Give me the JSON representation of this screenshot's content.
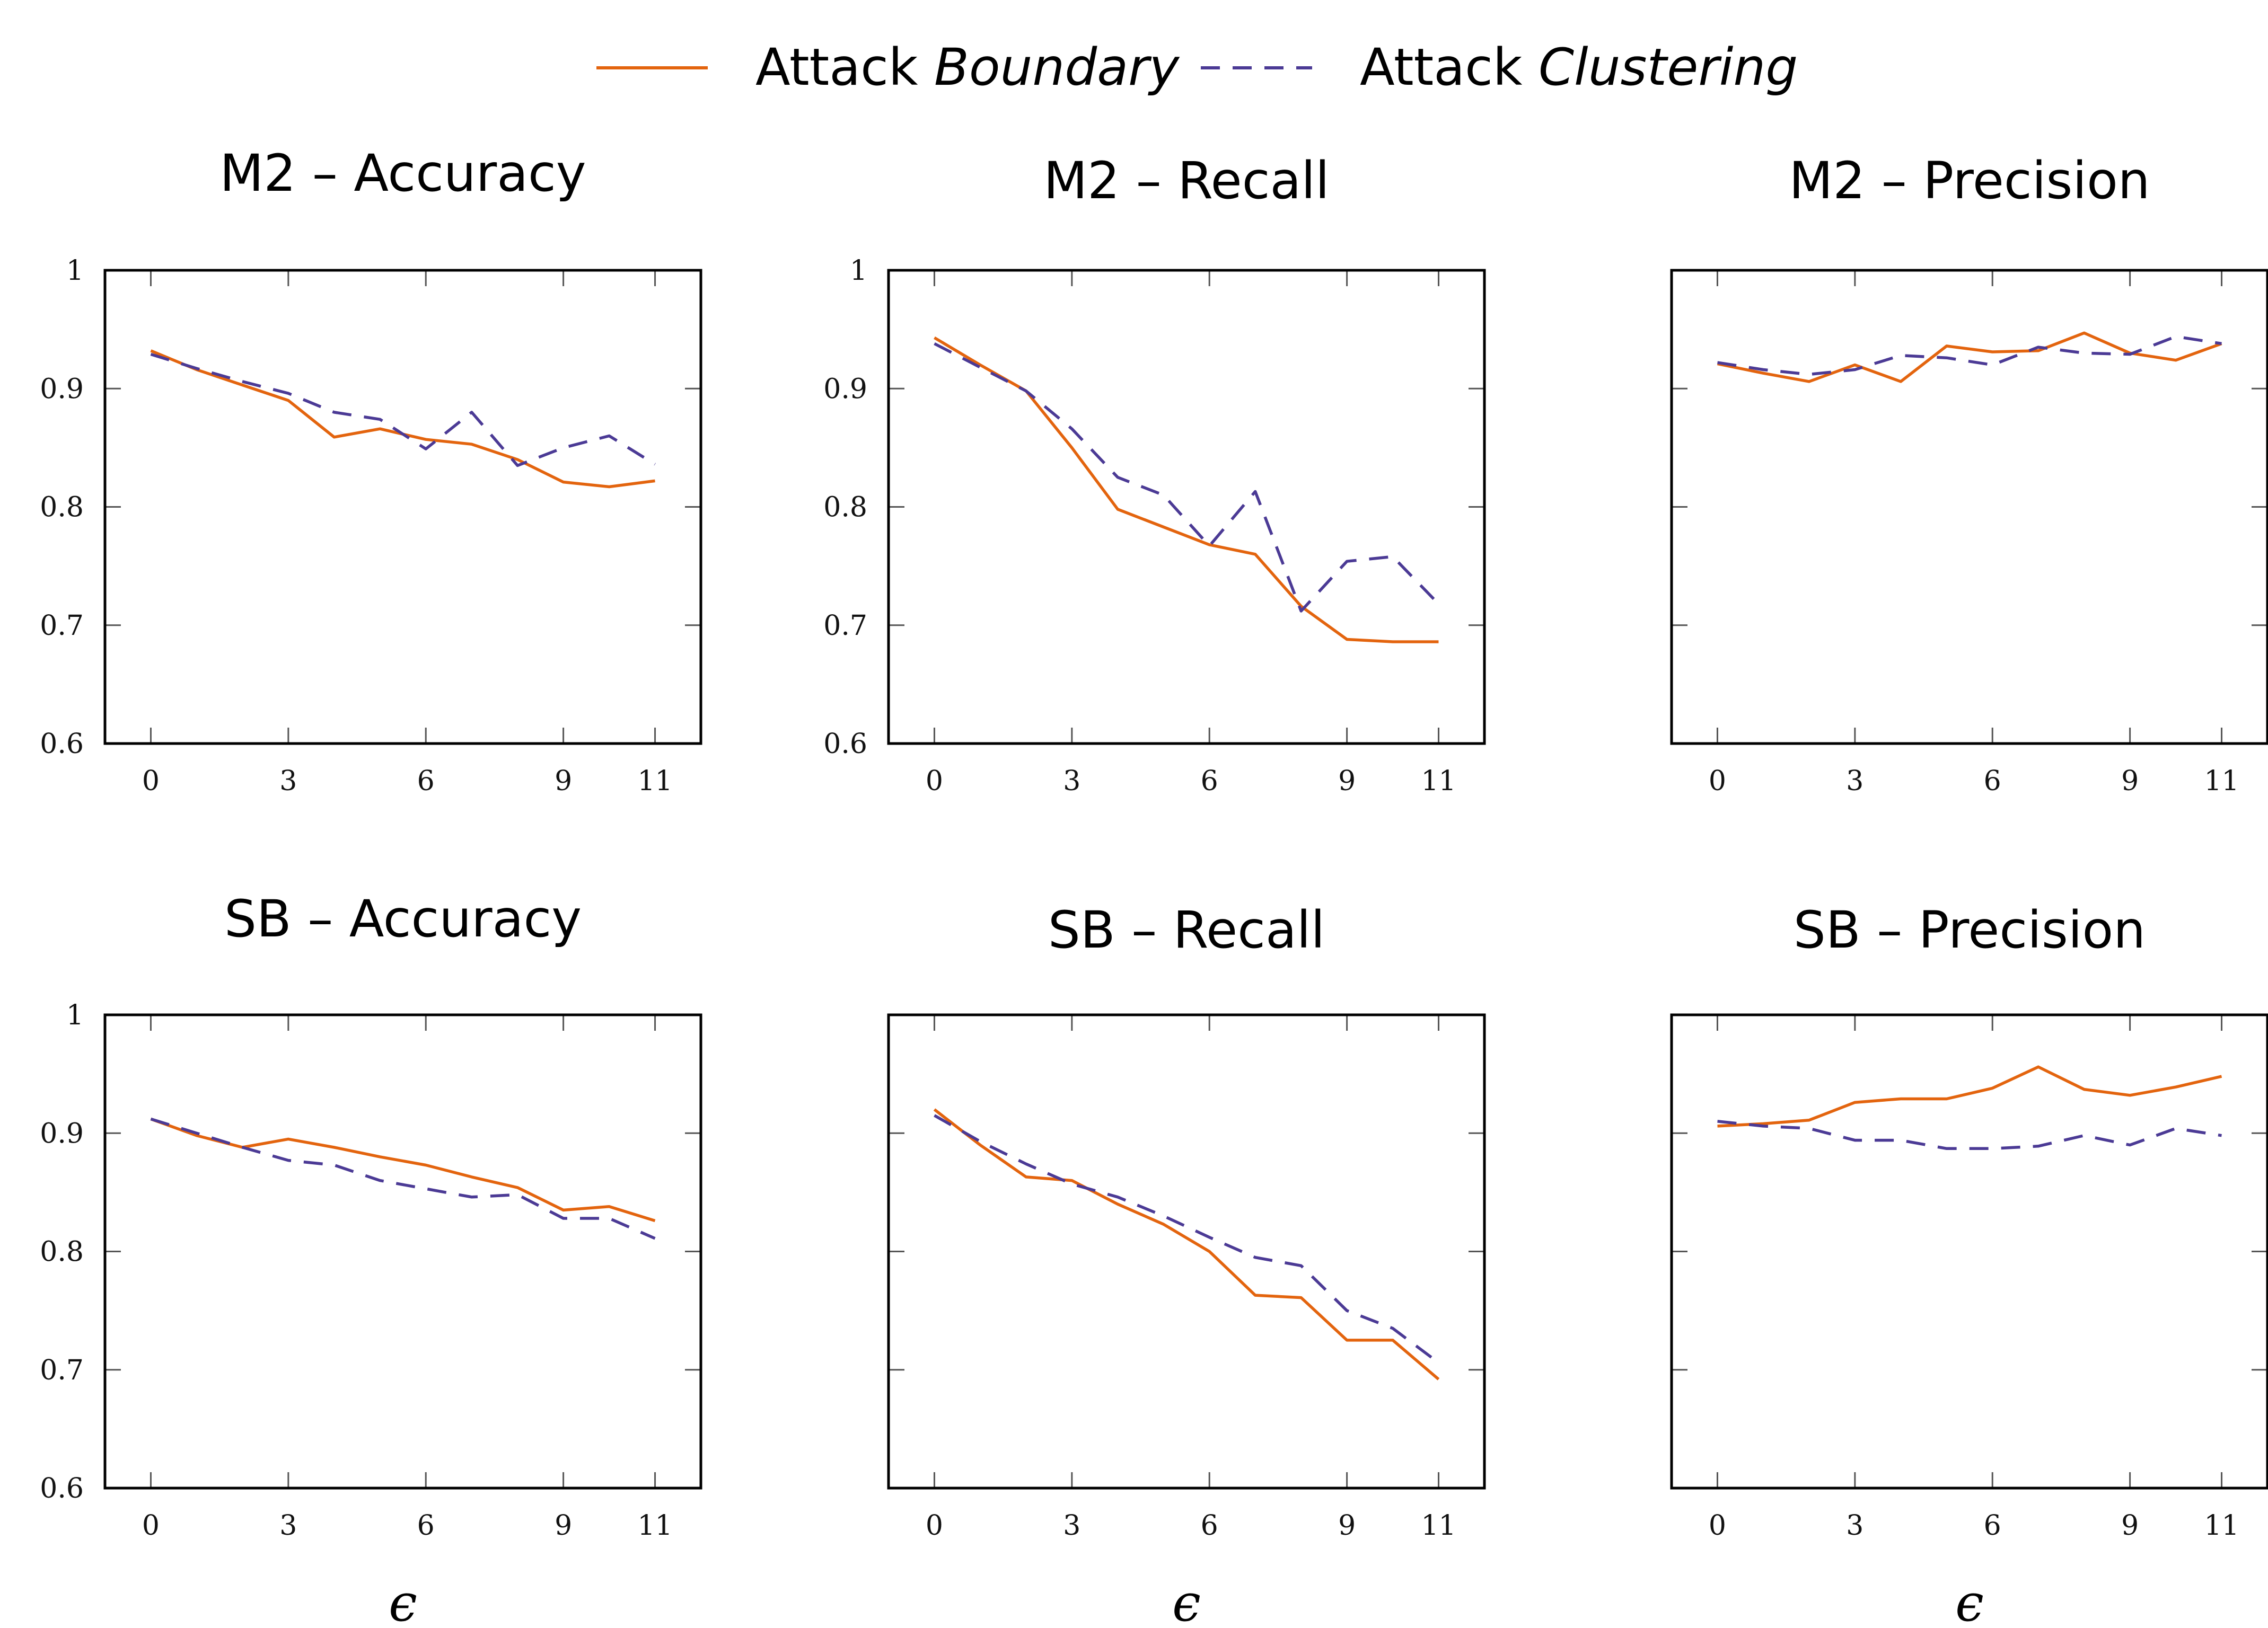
{
  "colors": {
    "boundary": "#e3640e",
    "clustering": "#4b3a95",
    "axis": "#000000",
    "tick": "#555555"
  },
  "legend": {
    "boundary": {
      "prefix": "Attack",
      "name": "Boundary"
    },
    "clustering": {
      "prefix": "Attack",
      "name": "Clustering"
    }
  },
  "chart_data": [
    {
      "type": "line",
      "title": "M2 – Accuracy",
      "xlabel": "",
      "ylabel": "",
      "xlim": [
        -1,
        12
      ],
      "ylim": [
        0.6,
        1.0
      ],
      "xticks": [
        0,
        3,
        6,
        9,
        11
      ],
      "yticks": [
        0.6,
        0.7,
        0.8,
        0.9,
        1.0
      ],
      "ytick_labels": [
        "0.6",
        "0.7",
        "0.8",
        "0.9",
        "1"
      ],
      "x": [
        0,
        1,
        2,
        3,
        4,
        5,
        6,
        7,
        8,
        9,
        10,
        11
      ],
      "series": [
        {
          "name": "Attack Boundary",
          "values": [
            0.932,
            0.916,
            0.903,
            0.89,
            0.859,
            0.866,
            0.857,
            0.853,
            0.84,
            0.821,
            0.817,
            0.822
          ]
        },
        {
          "name": "Attack Clustering",
          "values": [
            0.929,
            0.917,
            0.906,
            0.896,
            0.88,
            0.874,
            0.849,
            0.88,
            0.835,
            0.85,
            0.86,
            0.836
          ]
        }
      ]
    },
    {
      "type": "line",
      "title": "M2 – Recall",
      "xlabel": "",
      "ylabel": "",
      "xlim": [
        -1,
        12
      ],
      "ylim": [
        0.6,
        1.0
      ],
      "xticks": [
        0,
        3,
        6,
        9,
        11
      ],
      "yticks": [
        0.6,
        0.7,
        0.8,
        0.9,
        1.0
      ],
      "ytick_labels": [
        "0.6",
        "0.7",
        "0.8",
        "0.9",
        "1"
      ],
      "x": [
        0,
        1,
        2,
        3,
        4,
        5,
        6,
        7,
        8,
        9,
        10,
        11
      ],
      "series": [
        {
          "name": "Attack Boundary",
          "values": [
            0.943,
            0.92,
            0.898,
            0.85,
            0.798,
            0.783,
            0.768,
            0.76,
            0.716,
            0.688,
            0.686,
            0.686
          ]
        },
        {
          "name": "Attack Clustering",
          "values": [
            0.938,
            0.918,
            0.898,
            0.866,
            0.825,
            0.81,
            0.767,
            0.813,
            0.712,
            0.754,
            0.758,
            0.718
          ]
        }
      ]
    },
    {
      "type": "line",
      "title": "M2 – Precision",
      "xlabel": "",
      "ylabel": "",
      "xlim": [
        -1,
        12
      ],
      "ylim": [
        0.6,
        1.0
      ],
      "xticks": [
        0,
        3,
        6,
        9,
        11
      ],
      "yticks": [
        0.6,
        0.7,
        0.8,
        0.9,
        1.0
      ],
      "ytick_labels": [
        "",
        "",
        "",
        "",
        ""
      ],
      "x": [
        0,
        1,
        2,
        3,
        4,
        5,
        6,
        7,
        8,
        9,
        10,
        11
      ],
      "series": [
        {
          "name": "Attack Boundary",
          "values": [
            0.921,
            0.913,
            0.906,
            0.92,
            0.906,
            0.936,
            0.931,
            0.932,
            0.947,
            0.93,
            0.924,
            0.938
          ]
        },
        {
          "name": "Attack Clustering",
          "values": [
            0.922,
            0.916,
            0.912,
            0.916,
            0.928,
            0.926,
            0.92,
            0.935,
            0.93,
            0.929,
            0.944,
            0.938
          ]
        }
      ]
    },
    {
      "type": "line",
      "title": "SB – Accuracy",
      "xlabel": "ϵ",
      "ylabel": "",
      "xlim": [
        -1,
        12
      ],
      "ylim": [
        0.6,
        1.0
      ],
      "xticks": [
        0,
        3,
        6,
        9,
        11
      ],
      "yticks": [
        0.6,
        0.7,
        0.8,
        0.9,
        1.0
      ],
      "ytick_labels": [
        "0.6",
        "0.7",
        "0.8",
        "0.9",
        "1"
      ],
      "x": [
        0,
        1,
        2,
        3,
        4,
        5,
        6,
        7,
        8,
        9,
        10,
        11
      ],
      "series": [
        {
          "name": "Attack Boundary",
          "values": [
            0.912,
            0.898,
            0.888,
            0.895,
            0.888,
            0.88,
            0.873,
            0.863,
            0.854,
            0.835,
            0.838,
            0.826
          ]
        },
        {
          "name": "Attack Clustering",
          "values": [
            0.912,
            0.9,
            0.888,
            0.877,
            0.873,
            0.86,
            0.853,
            0.846,
            0.848,
            0.828,
            0.828,
            0.811
          ]
        }
      ]
    },
    {
      "type": "line",
      "title": "SB – Recall",
      "xlabel": "ϵ",
      "ylabel": "",
      "xlim": [
        -1,
        12
      ],
      "ylim": [
        0.6,
        1.0
      ],
      "xticks": [
        0,
        3,
        6,
        9,
        11
      ],
      "yticks": [
        0.6,
        0.7,
        0.8,
        0.9,
        1.0
      ],
      "ytick_labels": [
        "",
        "",
        "",
        "",
        ""
      ],
      "x": [
        0,
        1,
        2,
        3,
        4,
        5,
        6,
        7,
        8,
        9,
        10,
        11
      ],
      "series": [
        {
          "name": "Attack Boundary",
          "values": [
            0.92,
            0.89,
            0.863,
            0.86,
            0.84,
            0.823,
            0.8,
            0.763,
            0.761,
            0.725,
            0.725,
            0.692
          ]
        },
        {
          "name": "Attack Clustering",
          "values": [
            0.915,
            0.893,
            0.874,
            0.857,
            0.846,
            0.83,
            0.812,
            0.795,
            0.788,
            0.75,
            0.735,
            0.706
          ]
        }
      ]
    },
    {
      "type": "line",
      "title": "SB – Precision",
      "xlabel": "ϵ",
      "ylabel": "",
      "xlim": [
        -1,
        12
      ],
      "ylim": [
        0.6,
        1.0
      ],
      "xticks": [
        0,
        3,
        6,
        9,
        11
      ],
      "yticks": [
        0.6,
        0.7,
        0.8,
        0.9,
        1.0
      ],
      "ytick_labels": [
        "",
        "",
        "",
        "",
        ""
      ],
      "x": [
        0,
        1,
        2,
        3,
        4,
        5,
        6,
        7,
        8,
        9,
        10,
        11
      ],
      "series": [
        {
          "name": "Attack Boundary",
          "values": [
            0.906,
            0.908,
            0.911,
            0.926,
            0.929,
            0.929,
            0.938,
            0.956,
            0.937,
            0.932,
            0.939,
            0.948
          ]
        },
        {
          "name": "Attack Clustering",
          "values": [
            0.91,
            0.906,
            0.904,
            0.894,
            0.894,
            0.887,
            0.887,
            0.889,
            0.898,
            0.89,
            0.904,
            0.898
          ]
        }
      ]
    }
  ]
}
